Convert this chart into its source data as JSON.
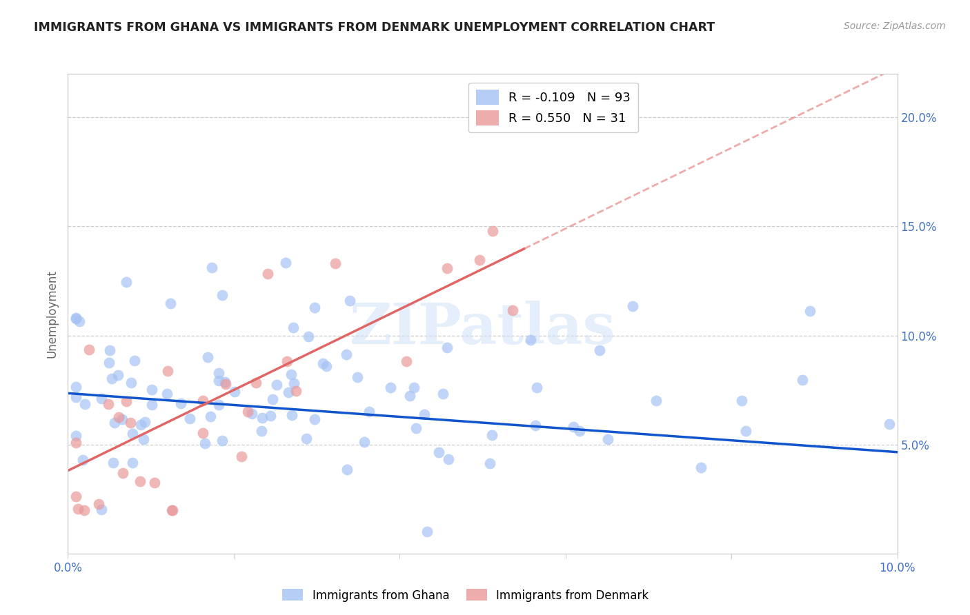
{
  "title": "IMMIGRANTS FROM GHANA VS IMMIGRANTS FROM DENMARK UNEMPLOYMENT CORRELATION CHART",
  "source": "Source: ZipAtlas.com",
  "ylabel": "Unemployment",
  "ghana_color": "#a4c2f4",
  "denmark_color": "#ea9999",
  "ghana_R": -0.109,
  "ghana_N": 93,
  "denmark_R": 0.55,
  "denmark_N": 31,
  "ghana_line_color": "#1155cc",
  "denmark_line_color": "#e06666",
  "ghana_line_intercept": 0.0735,
  "ghana_line_slope": -0.27,
  "denmark_line_intercept": 0.038,
  "denmark_line_slope": 1.85,
  "watermark": "ZIPatlas",
  "background_color": "#ffffff",
  "grid_color": "#cccccc",
  "right_ytick_values": [
    0.05,
    0.1,
    0.15,
    0.2
  ],
  "ylim_max": 0.22,
  "xlim_max": 0.1
}
